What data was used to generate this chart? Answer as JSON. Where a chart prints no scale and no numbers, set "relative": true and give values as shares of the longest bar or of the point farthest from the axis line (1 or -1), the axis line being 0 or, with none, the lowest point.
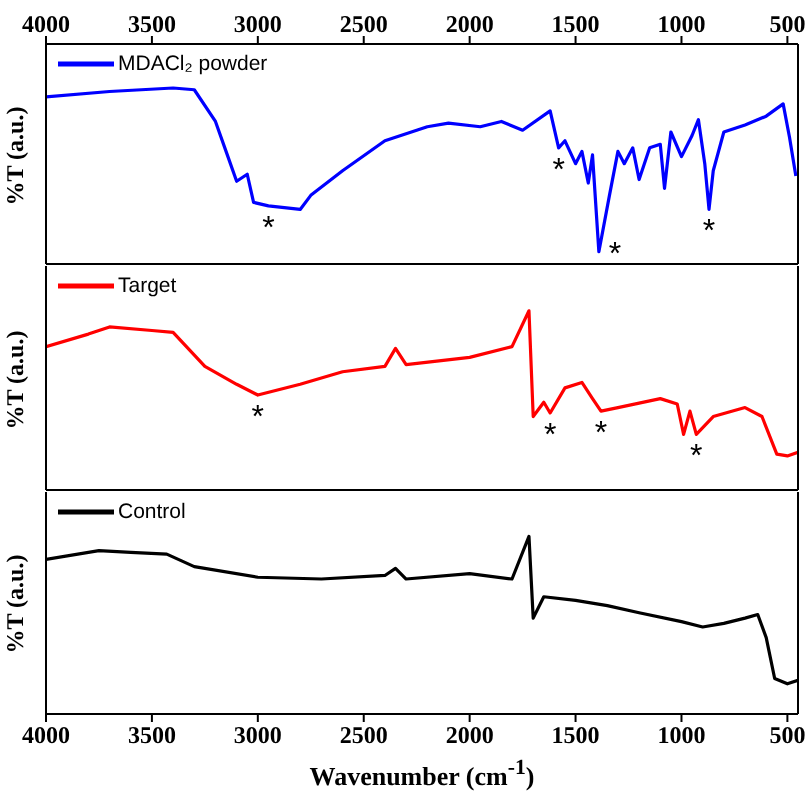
{
  "chart_data": [
    {
      "type": "line",
      "relative": true,
      "ylabel": "%T (a.u.)",
      "legend": "top left",
      "xlim": [
        4000,
        450
      ],
      "tick_labels": false,
      "xticks": [
        4000,
        3500,
        3000,
        2500,
        2000,
        1500,
        1000,
        500
      ],
      "x2lim": [
        4000,
        450
      ],
      "x2ticks": [
        4000,
        3500,
        3000,
        2500,
        2000,
        1500,
        1000,
        500
      ],
      "x": [
        4000,
        3700,
        3400,
        3300,
        3200,
        3150,
        3100,
        3050,
        3020,
        2950,
        2800,
        2750,
        2600,
        2400,
        2200,
        2100,
        1950,
        1850,
        1750,
        1620,
        1580,
        1550,
        1500,
        1470,
        1440,
        1420,
        1390,
        1340,
        1300,
        1270,
        1230,
        1200,
        1150,
        1100,
        1080,
        1050,
        1000,
        950,
        920,
        890,
        870,
        850,
        800,
        700,
        600,
        520,
        490,
        460
      ],
      "series": [
        {
          "name": "MDACl₂ powder",
          "color": "#0000ff",
          "values": [
            0.95,
            0.98,
            1,
            0.99,
            0.81,
            0.64,
            0.47,
            0.51,
            0.35,
            0.33,
            0.31,
            0.39,
            0.53,
            0.7,
            0.78,
            0.8,
            0.78,
            0.81,
            0.76,
            0.87,
            0.66,
            0.7,
            0.57,
            0.64,
            0.46,
            0.62,
            0.07,
            0.39,
            0.64,
            0.57,
            0.66,
            0.48,
            0.66,
            0.68,
            0.43,
            0.75,
            0.61,
            0.73,
            0.82,
            0.57,
            0.31,
            0.53,
            0.75,
            0.79,
            0.84,
            0.91,
            0.72,
            0.5
          ]
        }
      ],
      "annotations": [
        {
          "text": "*",
          "x": 2950,
          "y": 0.33
        },
        {
          "text": "*",
          "x": 1580,
          "y": 0.66
        },
        {
          "text": "*",
          "x": 1390,
          "y": 0.07
        },
        {
          "text": "*",
          "x": 870,
          "y": 0.31
        }
      ]
    },
    {
      "type": "line",
      "relative": true,
      "ylabel": "%T (a.u.)",
      "legend": "top left",
      "xlim": [
        4000,
        450
      ],
      "tick_labels": false,
      "xticks": [
        4000,
        3500,
        3000,
        2500,
        2000,
        1500,
        1000,
        500
      ],
      "x": [
        4000,
        3800,
        3700,
        3500,
        3400,
        3250,
        3100,
        3000,
        2800,
        2600,
        2400,
        2350,
        2300,
        2000,
        1800,
        1720,
        1700,
        1650,
        1620,
        1550,
        1470,
        1420,
        1380,
        1300,
        1100,
        1020,
        990,
        960,
        930,
        850,
        700,
        620,
        550,
        500,
        450
      ],
      "series": [
        {
          "name": "Target",
          "color": "#ff0000",
          "values": [
            0.8,
            0.87,
            0.91,
            0.89,
            0.88,
            0.69,
            0.59,
            0.53,
            0.59,
            0.66,
            0.69,
            0.79,
            0.7,
            0.74,
            0.8,
            1,
            0.41,
            0.49,
            0.43,
            0.57,
            0.6,
            0.51,
            0.44,
            0.46,
            0.51,
            0.48,
            0.31,
            0.44,
            0.31,
            0.41,
            0.46,
            0.41,
            0.2,
            0.19,
            0.21
          ]
        }
      ],
      "annotations": [
        {
          "text": "*",
          "x": 3000,
          "y": 0.53
        },
        {
          "text": "*",
          "x": 1620,
          "y": 0.43
        },
        {
          "text": "*",
          "x": 1380,
          "y": 0.44
        },
        {
          "text": "*",
          "x": 930,
          "y": 0.31
        }
      ]
    },
    {
      "type": "line",
      "relative": true,
      "ylabel": "%T (a.u.)",
      "xlabel": "Wavenumber (cm$^{-1}$)",
      "legend": "top left",
      "xlim": [
        4000,
        450
      ],
      "xticks": [
        4000,
        3500,
        3000,
        2500,
        2000,
        1500,
        1000,
        500
      ],
      "x": [
        4000,
        3750,
        3600,
        3430,
        3300,
        3000,
        2700,
        2400,
        2350,
        2300,
        2000,
        1800,
        1720,
        1700,
        1650,
        1500,
        1350,
        1200,
        1000,
        900,
        800,
        700,
        640,
        600,
        560,
        500,
        450
      ],
      "series": [
        {
          "name": "Control",
          "color": "#000000",
          "values": [
            0.87,
            0.92,
            0.91,
            0.9,
            0.83,
            0.77,
            0.76,
            0.78,
            0.82,
            0.76,
            0.79,
            0.76,
            1,
            0.54,
            0.66,
            0.64,
            0.61,
            0.57,
            0.52,
            0.49,
            0.51,
            0.54,
            0.56,
            0.43,
            0.2,
            0.17,
            0.19
          ]
        }
      ]
    }
  ]
}
